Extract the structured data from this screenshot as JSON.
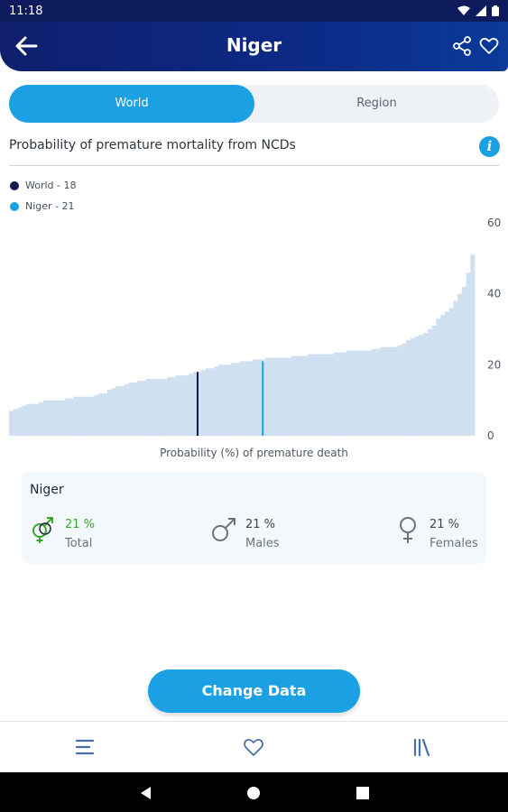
{
  "status_bar": {
    "time": "11:18"
  },
  "app_bar": {
    "title": "Niger"
  },
  "toggle": {
    "world_label": "World",
    "region_label": "Region"
  },
  "section": {
    "title": "Probability of premature mortality from NCDs",
    "info_glyph": "i"
  },
  "legend": {
    "world": {
      "label": "World - 18",
      "color": "#0d1a4f"
    },
    "niger": {
      "label": "Niger - 21",
      "color": "#1aa0e3"
    }
  },
  "chart_data": {
    "type": "bar",
    "xlabel": "Probability (%) of premature death",
    "ylabel": "",
    "ylim": [
      0,
      60
    ],
    "yticks": [
      0,
      20,
      40,
      60
    ],
    "bar_color": "#cfe1f0",
    "markers": [
      {
        "name": "World",
        "value": 18,
        "position_percentile": 40.5,
        "color": "#0d1a4f"
      },
      {
        "name": "Niger",
        "value": 21,
        "position_percentile": 54.5,
        "color": "#1aa0e3"
      }
    ],
    "values": [
      7,
      7.5,
      8,
      8.5,
      9,
      9,
      9,
      9.5,
      10,
      10,
      10,
      10,
      10,
      10.5,
      10.5,
      11,
      11,
      11,
      11,
      11,
      11.5,
      12,
      12,
      13,
      13.5,
      14,
      14,
      14.5,
      15,
      15,
      15.5,
      15.5,
      16,
      16,
      16,
      16,
      16,
      16.5,
      16.5,
      17,
      17,
      17,
      17.5,
      18,
      18,
      18.5,
      19,
      19,
      19.5,
      20,
      20,
      20,
      20.5,
      20.5,
      21,
      21,
      21,
      21.5,
      21.5,
      21.5,
      22,
      22,
      22,
      22,
      22,
      22,
      22.5,
      22.5,
      22.5,
      22.5,
      23,
      23,
      23,
      23,
      23,
      23,
      23.5,
      23.5,
      23.5,
      24,
      24,
      24,
      24,
      24,
      24,
      24.5,
      24.5,
      25,
      25,
      25,
      25,
      25.5,
      26,
      27,
      27.5,
      28,
      28.5,
      29,
      30,
      31,
      33,
      34,
      35,
      36,
      38,
      40,
      42,
      46,
      51
    ]
  },
  "summary": {
    "country": "Niger",
    "total": {
      "value": "21 %",
      "label": "Total"
    },
    "males": {
      "value": "21 %",
      "label": "Males"
    },
    "females": {
      "value": "21 %",
      "label": "Females"
    }
  },
  "actions": {
    "change_data": "Change Data"
  },
  "icons": {
    "back": "arrow-left-icon",
    "share": "share-icon",
    "favorite": "heart-outline-icon",
    "menu": "menu-icon",
    "library": "library-icon",
    "info": "info-icon"
  },
  "colors": {
    "accent": "#1aa0e3",
    "header": "#0f1f6d",
    "total_green": "#3aa52b"
  }
}
